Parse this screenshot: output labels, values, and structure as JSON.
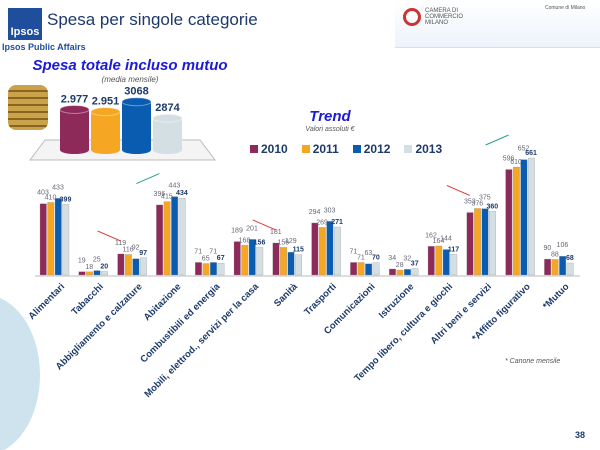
{
  "header": {
    "logo": "Ipsos",
    "title": "Spesa per singole categorie",
    "subtitle": "Ipsos Public Affairs",
    "partner": "CAMERA DI COMMERCIO MILANO",
    "partner2": "Comune di Milano"
  },
  "summary": {
    "title": "Spesa totale incluso mutuo",
    "subtitle": "(media mensile)"
  },
  "footer": {
    "note": "* Canone mensile",
    "page": "38"
  },
  "colors": {
    "2010": "#8e2a5a",
    "2011": "#f5a623",
    "2012": "#0a5cb0",
    "2013": "#d3dfe2"
  },
  "chart_data": [
    {
      "type": "bar",
      "title": "Spesa totale incluso mutuo",
      "subtitle": "(media mensile)",
      "categories": [
        "2010",
        "2011",
        "2012",
        "2013"
      ],
      "values": [
        2977,
        2951,
        3068,
        2874
      ],
      "labels": [
        "2.977",
        "2.951",
        "3068",
        "2874"
      ]
    },
    {
      "type": "bar",
      "title": "Trend",
      "subtitle": "Valori assoluti €",
      "legend": "top",
      "categories": [
        "Alimentari",
        "Tabacchi",
        "Abbigliamento e calzature",
        "Abitazione",
        "Combustibili ed energia",
        "Mobili, elettrod., servizi per la casa",
        "Sanità",
        "Trasporti",
        "Comunicazioni",
        "Istruzione",
        "Tempo libero, cultura e giochi",
        "Altri beni e servizi",
        "*Affitto figurativo",
        "*Mutuo"
      ],
      "series": [
        {
          "name": "2010",
          "values": [
            403,
            19,
            119,
            396,
            71,
            189,
            181,
            294,
            71,
            34,
            162,
            353,
            596,
            90
          ]
        },
        {
          "name": "2011",
          "values": [
            410,
            18,
            116,
            415,
            65,
            168,
            156,
            269,
            71,
            28,
            164,
            376,
            610,
            88
          ]
        },
        {
          "name": "2012",
          "values": [
            433,
            25,
            92,
            443,
            71,
            201,
            129,
            303,
            63,
            32,
            144,
            375,
            652,
            106
          ]
        },
        {
          "name": "2013",
          "values": [
            399,
            20,
            97,
            434,
            67,
            156,
            115,
            271,
            70,
            37,
            117,
            360,
            661,
            68
          ]
        }
      ],
      "annotations": [
        {
          "category": "Abbigliamento e calzature",
          "trend": "down"
        },
        {
          "category": "Abitazione",
          "trend": "up"
        },
        {
          "category": "Sanità",
          "trend": "down"
        },
        {
          "category": "Altri beni e servizi",
          "trend": "down"
        },
        {
          "category": "*Affitto figurativo",
          "trend": "up"
        }
      ]
    }
  ]
}
